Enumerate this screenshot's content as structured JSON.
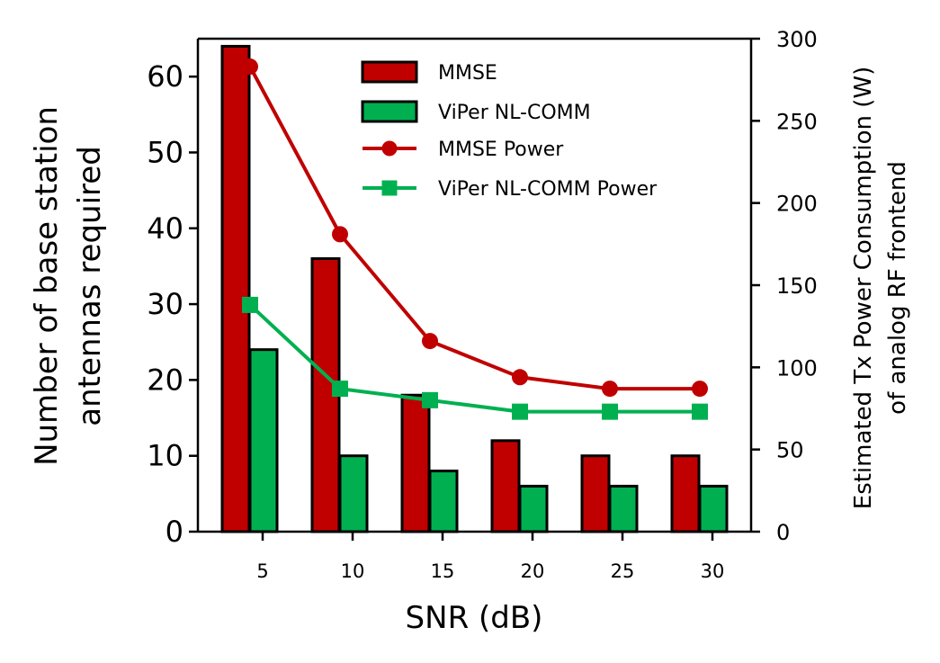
{
  "chart_data": {
    "type": "bar",
    "x": [
      5,
      10,
      15,
      20,
      25,
      30
    ],
    "xlabel": "SNR (dB)",
    "xticks": [
      "5",
      "10",
      "15",
      "20",
      "25",
      "30"
    ],
    "ylabel_lines": [
      "Number of base station",
      "antennas required"
    ],
    "ylim": [
      0,
      65
    ],
    "yticks": [
      "0",
      "10",
      "20",
      "30",
      "40",
      "50",
      "60"
    ],
    "y2label_lines": [
      "Estimated Tx Power Consumption (W)",
      "of analog RF frontend"
    ],
    "y2lim": [
      0,
      300
    ],
    "y2ticks": [
      "0",
      "50",
      "100",
      "150",
      "200",
      "250",
      "300"
    ],
    "series": [
      {
        "name": "MMSE",
        "kind": "bar",
        "axis": "left",
        "color": "#c00000",
        "values": [
          64,
          36,
          18,
          12,
          10,
          10
        ]
      },
      {
        "name": "ViPer NL-COMM",
        "kind": "bar",
        "axis": "left",
        "color": "#00b050",
        "values": [
          24,
          10,
          8,
          6,
          6,
          6
        ]
      },
      {
        "name": "MMSE Power",
        "kind": "line",
        "marker": "circle",
        "axis": "right",
        "color": "#c00000",
        "values": [
          283,
          181,
          116,
          94,
          87,
          87
        ]
      },
      {
        "name": "ViPer NL-COMM Power",
        "kind": "line",
        "marker": "square",
        "axis": "right",
        "color": "#00b050",
        "values": [
          138,
          87,
          80,
          73,
          73,
          73
        ]
      }
    ],
    "legend_position": "top-center"
  }
}
